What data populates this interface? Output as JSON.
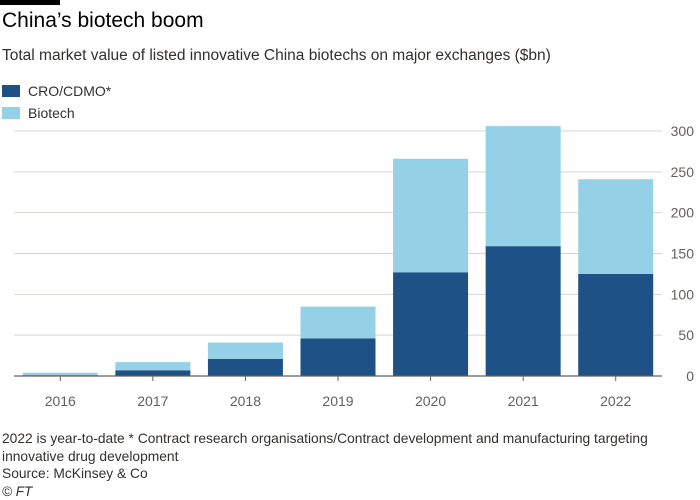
{
  "title": "China’s biotech boom",
  "subtitle": "Total market value of listed innovative China biotechs on major exchanges ($bn)",
  "footnote": "2022 is year-to-date * Contract research organisations/Contract development and manufacturing targeting innovative drug development",
  "source": "Source: McKinsey & Co",
  "copyright": "© FT",
  "colors": {
    "cro": "#1e5185",
    "biotech": "#95d1e6",
    "grid": "#d9d4cf",
    "axis": "#66605c"
  },
  "chart_data": {
    "type": "bar",
    "stacked": true,
    "categories": [
      "2016",
      "2017",
      "2018",
      "2019",
      "2020",
      "2021",
      "2022"
    ],
    "series": [
      {
        "name": "CRO/CDMO*",
        "values": [
          1,
          7,
          21,
          46,
          127,
          159,
          125
        ]
      },
      {
        "name": "Biotech",
        "values": [
          3,
          10,
          20,
          39,
          139,
          147,
          116
        ]
      }
    ],
    "ylim": [
      0,
      300
    ],
    "yticks": [
      0,
      50,
      100,
      150,
      200,
      250,
      300
    ],
    "y_axis_side": "right",
    "grid": true,
    "legend_position": "top-left"
  }
}
